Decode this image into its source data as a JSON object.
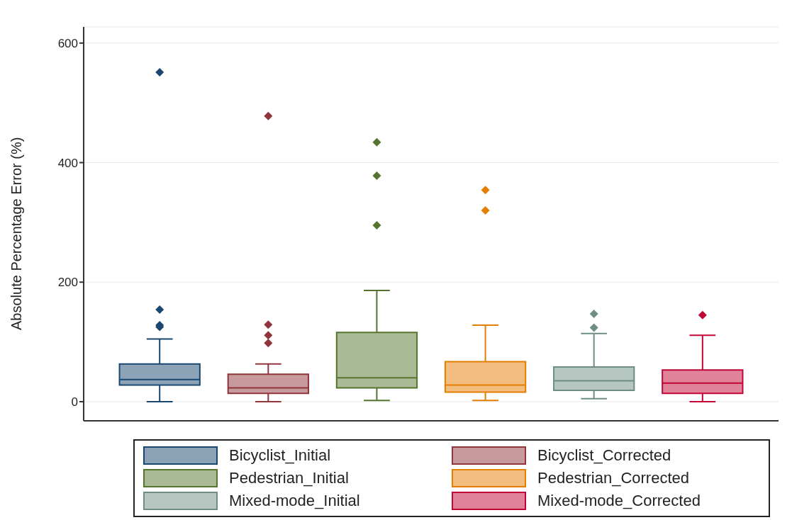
{
  "chart_data": {
    "type": "box",
    "ylabel": "Absolute Percentage Error (%)",
    "categories": [
      null,
      null,
      null,
      null,
      null,
      null
    ],
    "ylim": [
      -32,
      627
    ],
    "yticks": [
      0,
      200,
      400,
      600
    ],
    "grid": "y",
    "legend": "bottom",
    "marker": "diamond",
    "series": [
      {
        "name": "Bicyclist_Initial",
        "color": "#1a476f",
        "boxes": [
          {
            "low": 0,
            "q1": 28,
            "median": 37,
            "q3": 63,
            "high": 105,
            "outliers": [
              125,
              128,
              154,
              551
            ]
          },
          null,
          null,
          null,
          null,
          null
        ]
      },
      {
        "name": "Bicyclist_Corrected",
        "color": "#90353b",
        "boxes": [
          null,
          {
            "low": 0,
            "q1": 14,
            "median": 23,
            "q3": 46,
            "high": 63,
            "outliers": [
              98,
              111,
              129,
              478
            ]
          },
          null,
          null,
          null,
          null
        ]
      },
      {
        "name": "Pedestrian_Initial",
        "color": "#55752f",
        "boxes": [
          null,
          null,
          {
            "low": 2,
            "q1": 23,
            "median": 40,
            "q3": 116,
            "high": 186,
            "outliers": [
              295,
              378,
              434
            ]
          },
          null,
          null,
          null
        ]
      },
      {
        "name": "Pedestrian_Corrected",
        "color": "#e37e00",
        "boxes": [
          null,
          null,
          null,
          {
            "low": 2,
            "q1": 16,
            "median": 28,
            "q3": 67,
            "high": 128,
            "outliers": [
              320,
              354
            ]
          },
          null,
          null
        ]
      },
      {
        "name": "Mixed-mode_Initial",
        "color": "#6e8e84",
        "boxes": [
          null,
          null,
          null,
          null,
          {
            "low": 5,
            "q1": 19,
            "median": 35,
            "q3": 58,
            "high": 114,
            "outliers": [
              124,
              147
            ]
          },
          null
        ]
      },
      {
        "name": "Mixed-mode_Corrected",
        "color": "#c10534",
        "boxes": [
          null,
          null,
          null,
          null,
          null,
          {
            "low": 0,
            "q1": 14,
            "median": 31,
            "q3": 53,
            "high": 111,
            "outliers": [
              145
            ]
          }
        ]
      }
    ]
  }
}
